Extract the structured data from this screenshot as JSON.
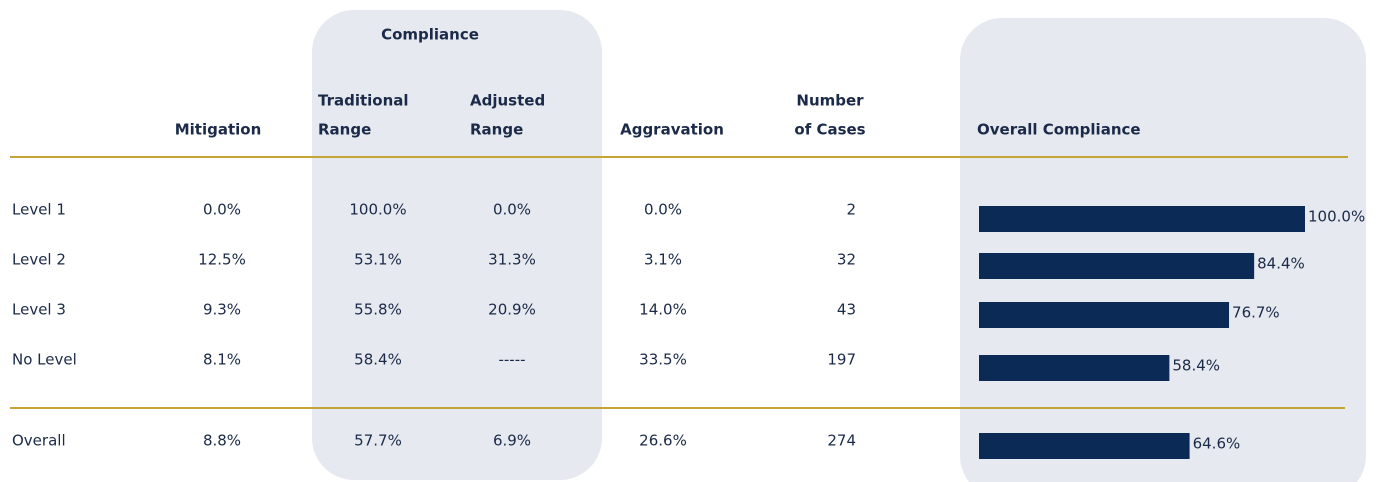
{
  "table": {
    "group_header": "Compliance",
    "columns": [
      [
        "Mitigation"
      ],
      [
        "Traditional",
        "Range"
      ],
      [
        "Adjusted",
        "Range"
      ],
      [
        "Aggravation"
      ],
      [
        "Number",
        "of Cases"
      ]
    ],
    "rows": [
      {
        "label": "Level 1",
        "cells": [
          "0.0%",
          "100.0%",
          "0.0%",
          "0.0%",
          "2"
        ]
      },
      {
        "label": "Level 2",
        "cells": [
          "12.5%",
          "53.1%",
          "31.3%",
          "3.1%",
          "32"
        ]
      },
      {
        "label": "Level 3",
        "cells": [
          "9.3%",
          "55.8%",
          "20.9%",
          "14.0%",
          "43"
        ]
      },
      {
        "label": "No Level",
        "cells": [
          "8.1%",
          "58.4%",
          "-----",
          "33.5%",
          "197"
        ]
      },
      {
        "label": "Overall",
        "cells": [
          "8.8%",
          "57.7%",
          "6.9%",
          "26.6%",
          "274"
        ]
      }
    ]
  },
  "bars": {
    "header": "Overall Compliance",
    "values": [
      100.0,
      84.4,
      76.7,
      58.4,
      64.6
    ],
    "value_labels": [
      "100.0%",
      "84.4%",
      "76.7%",
      "58.4%",
      "64.6%"
    ],
    "xlim": [
      0,
      100
    ],
    "color": "#0b2a55"
  }
}
